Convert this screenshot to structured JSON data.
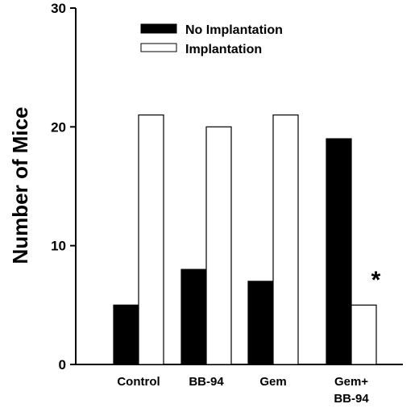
{
  "chart_data": {
    "type": "bar",
    "title": "",
    "xlabel": "",
    "ylabel": "Number of Mice",
    "ylim": [
      0,
      30
    ],
    "yticks": [
      0,
      10,
      20,
      30
    ],
    "grid": false,
    "legend_position": "top-left",
    "categories": [
      [
        "Control"
      ],
      [
        "BB-94"
      ],
      [
        "Gem"
      ],
      [
        "Gem+",
        "BB-94"
      ]
    ],
    "series": [
      {
        "name": "No Implantation",
        "color": "#000000",
        "values": [
          5,
          8,
          7,
          19
        ]
      },
      {
        "name": "Implantation",
        "color": "#ffffff",
        "values": [
          21,
          20,
          21,
          5
        ]
      }
    ],
    "annotations": [
      {
        "text": "*",
        "category_index": 3,
        "series_index": 1,
        "value": 7.4
      }
    ]
  }
}
